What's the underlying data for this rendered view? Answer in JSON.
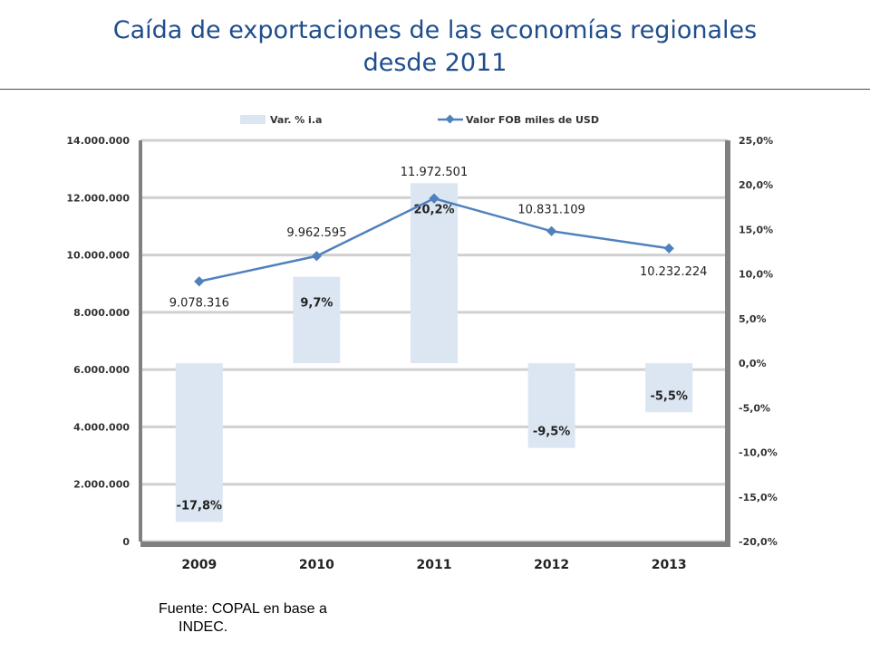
{
  "slide": {
    "title_line1": "Caída de exportaciones de las economías regionales",
    "title_line2": "desde 2011",
    "source_line1": "Fuente: COPAL en base a",
    "source_line2": "INDEC."
  },
  "colors": {
    "title": "#1f4e8c",
    "bar": "#dce6f2",
    "line": "#4f81bd",
    "grid": "#d0d0d0",
    "axis_frame": "#808080"
  },
  "chart_data": {
    "type": "bar+line",
    "categories": [
      "2009",
      "2010",
      "2011",
      "2012",
      "2013"
    ],
    "legend": [
      "Var. % i.a",
      "Valor FOB miles de USD"
    ],
    "legend_position": "top",
    "grid": true,
    "series": [
      {
        "name": "Var. % i.a",
        "type": "bar",
        "axis": "right",
        "values": [
          -17.8,
          9.7,
          20.2,
          -9.5,
          -5.5
        ],
        "labels": [
          "-17,8%",
          "9,7%",
          "20,2%",
          "-9,5%",
          "-5,5%"
        ]
      },
      {
        "name": "Valor FOB miles de USD",
        "type": "line",
        "axis": "left",
        "values": [
          9078316,
          9962595,
          11972501,
          10831109,
          10232224
        ],
        "labels": [
          "9.078.316",
          "9.962.595",
          "11.972.501",
          "10.831.109",
          "10.232.224"
        ]
      }
    ],
    "y_left": {
      "range": [
        0,
        14000000
      ],
      "ticks": [
        "0",
        "2.000.000",
        "4.000.000",
        "6.000.000",
        "8.000.000",
        "10.000.000",
        "12.000.000",
        "14.000.000"
      ]
    },
    "y_right": {
      "range": [
        -20,
        25
      ],
      "ticks": [
        "-20,0%",
        "-15,0%",
        "-10,0%",
        "-5,0%",
        "0,0%",
        "5,0%",
        "10,0%",
        "15,0%",
        "20,0%",
        "25,0%"
      ]
    }
  }
}
